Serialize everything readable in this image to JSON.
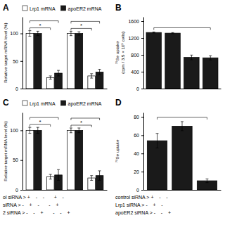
{
  "chart_data": [
    {
      "type": "bar",
      "title": "A",
      "y_label": "Relative target mRNA level (%)",
      "categories": [
        null,
        null,
        null,
        null
      ],
      "series": [
        {
          "name": "Lrp1 mRNA",
          "color": "#ffffff",
          "values": [
            100,
            20,
            100,
            23
          ],
          "errors": [
            5,
            3,
            4,
            4
          ]
        },
        {
          "name": "apoER2 mRNA",
          "color": "#1a1a1a",
          "values": [
            100,
            28,
            100,
            30
          ],
          "errors": [
            4,
            5,
            3,
            5
          ]
        }
      ],
      "ylim": [
        0,
        130
      ],
      "yticks": [
        0,
        50,
        100
      ],
      "legend": "upper left",
      "tick_labels": "y",
      "annotations": [
        "*",
        "*"
      ]
    },
    {
      "type": "bar",
      "title": "B",
      "y_label": "⁷⁵Se uptake\n(cpm / 3.5 × 10⁵ cells)",
      "categories": [
        null,
        null,
        null,
        null
      ],
      "values": [
        1330,
        1315,
        740,
        730
      ],
      "errors": [
        12,
        12,
        55,
        50
      ],
      "color": "#1a1a1a",
      "ylim": [
        0,
        1700
      ],
      "yticks": [
        0,
        400,
        800,
        1200,
        1600
      ],
      "tick_labels": "y"
    },
    {
      "type": "bar",
      "title": "C",
      "y_label": "Relative target mRNA level (%)",
      "x_label": "ol siRNA > +    -    -       +    -\nsiRNA > -    +    -       -    +\n2 siRNA > -    -    +       -    -    +",
      "categories": [
        null,
        null,
        null,
        null
      ],
      "series": [
        {
          "name": "Lrp1 mRNA",
          "color": "#ffffff",
          "values": [
            100,
            22,
            100,
            20
          ],
          "errors": [
            5,
            4,
            4,
            4
          ]
        },
        {
          "name": "apoER2 mRNA",
          "color": "#1a1a1a",
          "values": [
            100,
            25,
            100,
            24
          ],
          "errors": [
            5,
            9,
            4,
            8
          ]
        }
      ],
      "ylim": [
        0,
        130
      ],
      "yticks": [
        0,
        50,
        100
      ],
      "legend": "upper left",
      "tick_labels": "y",
      "annotations": [
        "*",
        "*"
      ]
    },
    {
      "type": "bar",
      "title": "D",
      "y_label": "⁷⁵Se uptake",
      "x_label": "control siRNA > +    -    -\nLrp1 siRNA > -    +    -\napoER2 siRNA > -    -    +",
      "categories": [
        null,
        null,
        null
      ],
      "values": [
        54,
        70,
        10
      ],
      "errors": [
        8,
        5,
        2
      ],
      "color": "#1a1a1a",
      "ylim": [
        0,
        85
      ],
      "yticks": [
        0,
        20,
        40,
        60,
        80
      ],
      "tick_labels": "y"
    }
  ]
}
